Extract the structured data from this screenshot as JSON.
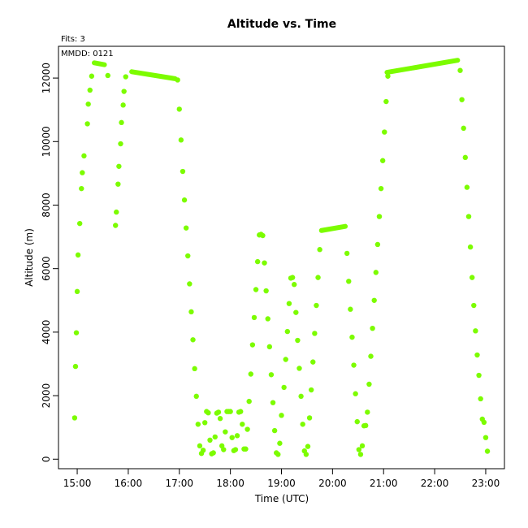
{
  "chart_data": {
    "type": "scatter",
    "title": "Altitude  vs. Time",
    "fits_note": "Fits: 3",
    "date_note": "MMDD: 0121",
    "xlabel": "Time (UTC)",
    "ylabel": "Altitude (m)",
    "xlim": [
      "14:38",
      "23:22"
    ],
    "ylim": [
      -300,
      13000
    ],
    "x_ticks": [
      "15:00",
      "16:00",
      "17:00",
      "18:00",
      "19:00",
      "20:00",
      "21:00",
      "22:00",
      "23:00"
    ],
    "y_ticks": [
      0,
      2000,
      4000,
      6000,
      8000,
      10000,
      12000
    ],
    "point_color": "#7CFC00",
    "grid": false,
    "segments": [
      {
        "type": "line",
        "points": [
          [
            "15:20",
            12480
          ],
          [
            "15:32",
            12420
          ]
        ]
      },
      {
        "type": "line",
        "points": [
          [
            "16:04",
            12200
          ],
          [
            "16:55",
            11980
          ]
        ]
      },
      {
        "type": "line",
        "points": [
          [
            "19:47",
            7200
          ],
          [
            "20:15",
            7330
          ]
        ]
      },
      {
        "type": "line",
        "points": [
          [
            "21:04",
            12180
          ],
          [
            "22:27",
            12560
          ]
        ]
      }
    ],
    "points": [
      [
        "14:57",
        1300
      ],
      [
        "14:58",
        2920
      ],
      [
        "14:59",
        3980
      ],
      [
        "15:00",
        5280
      ],
      [
        "15:01",
        6430
      ],
      [
        "15:03",
        7420
      ],
      [
        "15:05",
        8520
      ],
      [
        "15:06",
        9020
      ],
      [
        "15:08",
        9550
      ],
      [
        "15:12",
        10560
      ],
      [
        "15:13",
        11180
      ],
      [
        "15:15",
        11620
      ],
      [
        "15:17",
        12060
      ],
      [
        "15:36",
        12080
      ],
      [
        "15:45",
        7360
      ],
      [
        "15:46",
        7780
      ],
      [
        "15:48",
        8660
      ],
      [
        "15:49",
        9220
      ],
      [
        "15:51",
        9930
      ],
      [
        "15:52",
        10600
      ],
      [
        "15:54",
        11150
      ],
      [
        "15:55",
        11580
      ],
      [
        "15:57",
        12040
      ],
      [
        "16:58",
        11940
      ],
      [
        "17:00",
        11020
      ],
      [
        "17:02",
        10050
      ],
      [
        "17:04",
        9060
      ],
      [
        "17:06",
        8160
      ],
      [
        "17:08",
        7280
      ],
      [
        "17:10",
        6400
      ],
      [
        "17:12",
        5520
      ],
      [
        "17:14",
        4640
      ],
      [
        "17:16",
        3760
      ],
      [
        "17:18",
        2850
      ],
      [
        "17:20",
        1980
      ],
      [
        "17:22",
        1100
      ],
      [
        "17:24",
        420
      ],
      [
        "17:26",
        180
      ],
      [
        "17:28",
        280
      ],
      [
        "17:30",
        1150
      ],
      [
        "17:32",
        1500
      ],
      [
        "17:34",
        1460
      ],
      [
        "17:36",
        600
      ],
      [
        "17:38",
        170
      ],
      [
        "17:40",
        200
      ],
      [
        "17:42",
        700
      ],
      [
        "17:44",
        1450
      ],
      [
        "17:46",
        1480
      ],
      [
        "17:48",
        1280
      ],
      [
        "17:50",
        420
      ],
      [
        "17:52",
        300
      ],
      [
        "17:54",
        860
      ],
      [
        "17:56",
        1500
      ],
      [
        "17:58",
        1500
      ],
      [
        "18:00",
        1500
      ],
      [
        "18:02",
        680
      ],
      [
        "18:04",
        270
      ],
      [
        "18:06",
        300
      ],
      [
        "18:08",
        740
      ],
      [
        "18:10",
        1480
      ],
      [
        "18:12",
        1500
      ],
      [
        "18:14",
        1100
      ],
      [
        "18:16",
        320
      ],
      [
        "18:18",
        320
      ],
      [
        "18:20",
        940
      ],
      [
        "18:22",
        1820
      ],
      [
        "18:24",
        2680
      ],
      [
        "18:26",
        3600
      ],
      [
        "18:28",
        4460
      ],
      [
        "18:30",
        5340
      ],
      [
        "18:32",
        6220
      ],
      [
        "18:34",
        7060
      ],
      [
        "18:36",
        7080
      ],
      [
        "18:38",
        7040
      ],
      [
        "18:40",
        6180
      ],
      [
        "18:42",
        5300
      ],
      [
        "18:44",
        4420
      ],
      [
        "18:46",
        3540
      ],
      [
        "18:48",
        2660
      ],
      [
        "18:50",
        1780
      ],
      [
        "18:52",
        900
      ],
      [
        "18:54",
        200
      ],
      [
        "18:56",
        150
      ],
      [
        "18:58",
        500
      ],
      [
        "19:00",
        1380
      ],
      [
        "19:03",
        2260
      ],
      [
        "19:05",
        3140
      ],
      [
        "19:07",
        4020
      ],
      [
        "19:09",
        4900
      ],
      [
        "19:11",
        5700
      ],
      [
        "19:13",
        5720
      ],
      [
        "19:15",
        5500
      ],
      [
        "19:17",
        4620
      ],
      [
        "19:19",
        3740
      ],
      [
        "19:21",
        2860
      ],
      [
        "19:23",
        1980
      ],
      [
        "19:25",
        1100
      ],
      [
        "19:27",
        260
      ],
      [
        "19:29",
        150
      ],
      [
        "19:31",
        400
      ],
      [
        "19:33",
        1300
      ],
      [
        "19:35",
        2180
      ],
      [
        "19:37",
        3060
      ],
      [
        "19:39",
        3960
      ],
      [
        "19:41",
        4840
      ],
      [
        "19:43",
        5720
      ],
      [
        "19:45",
        6600
      ],
      [
        "20:17",
        6480
      ],
      [
        "20:19",
        5600
      ],
      [
        "20:21",
        4720
      ],
      [
        "20:23",
        3840
      ],
      [
        "20:25",
        2960
      ],
      [
        "20:27",
        2060
      ],
      [
        "20:29",
        1180
      ],
      [
        "20:31",
        300
      ],
      [
        "20:33",
        150
      ],
      [
        "20:35",
        420
      ],
      [
        "20:37",
        1050
      ],
      [
        "20:39",
        1060
      ],
      [
        "20:41",
        1480
      ],
      [
        "20:43",
        2360
      ],
      [
        "20:45",
        3240
      ],
      [
        "20:47",
        4120
      ],
      [
        "20:49",
        5000
      ],
      [
        "20:51",
        5880
      ],
      [
        "20:53",
        6760
      ],
      [
        "20:55",
        7640
      ],
      [
        "20:57",
        8520
      ],
      [
        "20:59",
        9400
      ],
      [
        "21:01",
        10300
      ],
      [
        "21:03",
        11260
      ],
      [
        "21:05",
        12060
      ],
      [
        "22:30",
        12240
      ],
      [
        "22:32",
        11320
      ],
      [
        "22:34",
        10420
      ],
      [
        "22:36",
        9500
      ],
      [
        "22:38",
        8560
      ],
      [
        "22:40",
        7640
      ],
      [
        "22:42",
        6680
      ],
      [
        "22:44",
        5720
      ],
      [
        "22:46",
        4840
      ],
      [
        "22:48",
        4040
      ],
      [
        "22:50",
        3280
      ],
      [
        "22:52",
        2640
      ],
      [
        "22:54",
        1900
      ],
      [
        "22:56",
        1260
      ],
      [
        "22:58",
        1160
      ],
      [
        "23:00",
        680
      ],
      [
        "23:02",
        250
      ]
    ]
  }
}
